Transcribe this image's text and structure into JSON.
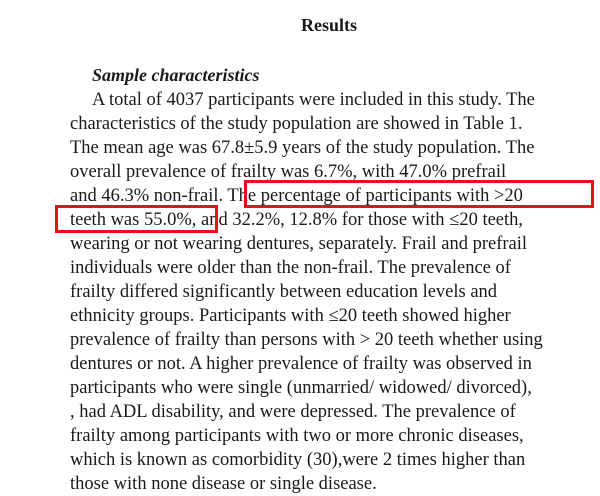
{
  "section_title": "Results",
  "subsection_title": "Sample characteristics",
  "lines": [
    "A total of 4037 participants were included in this study. The",
    "characteristics of the study population are showed in Table 1.",
    "The mean age was 67.8±5.9 years of the study population. The",
    "overall prevalence of frailty was 6.7%, with 47.0% prefrail",
    "and 46.3% non-frail. The percentage of participants with >20",
    "teeth was 55.0%, and 32.2%, 12.8% for those with ≤20 teeth,",
    "wearing or not wearing dentures, separately. Frail and prefrail",
    "individuals were older than the non-frail. The prevalence of",
    "frailty differed significantly between education levels and",
    "ethnicity groups. Participants with ≤20 teeth showed higher",
    "prevalence of frailty than persons with > 20 teeth whether using",
    "dentures or not. A higher prevalence of frailty was observed in",
    "participants who were single (unmarried/ widowed/ divorced),",
    ", had ADL disability, and were depressed. The prevalence of",
    "frailty among participants with two or more chronic diseases,",
    "which is known as comorbidity (30),were 2 times higher than",
    "those with none disease or single disease."
  ],
  "highlight_color": "#e8111b"
}
